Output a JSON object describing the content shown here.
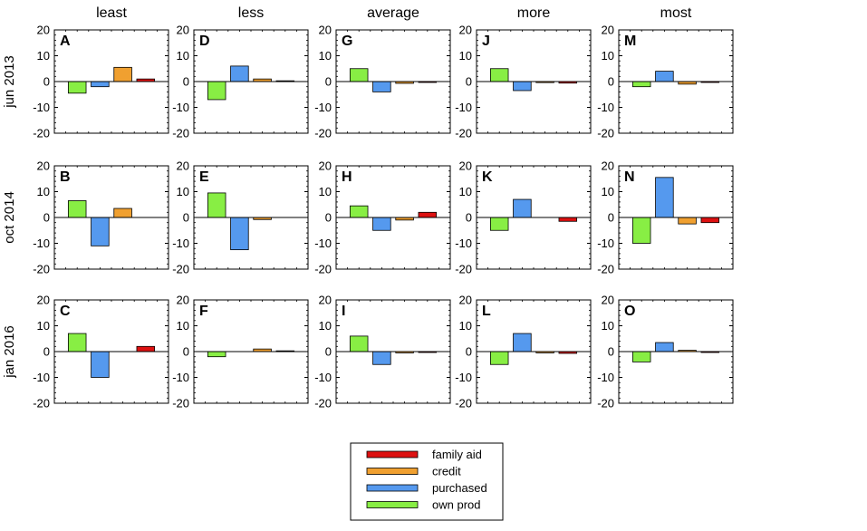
{
  "chart_data": {
    "type": "bar",
    "ylim": [
      -20,
      20
    ],
    "yticks": [
      20,
      10,
      0,
      -10,
      -20
    ],
    "ytick_labels": [
      "20",
      "10",
      "0",
      "-10",
      "-20"
    ],
    "columns": [
      "least",
      "less",
      "average",
      "more",
      "most"
    ],
    "rows": [
      "jun 2013",
      "oct 2014",
      "jan 2016"
    ],
    "series": [
      {
        "name": "own prod",
        "color": "#88ee44"
      },
      {
        "name": "purchased",
        "color": "#5599ee"
      },
      {
        "name": "credit",
        "color": "#f0a030"
      },
      {
        "name": "family aid",
        "color": "#dd1111"
      }
    ],
    "legend_order": [
      "family aid",
      "credit",
      "purchased",
      "own prod"
    ],
    "panels": [
      {
        "letter": "A",
        "row": 0,
        "col": 0,
        "values": [
          -4.5,
          -2,
          5.5,
          1
        ]
      },
      {
        "letter": "D",
        "row": 0,
        "col": 1,
        "values": [
          -7,
          6,
          1,
          0.3
        ]
      },
      {
        "letter": "G",
        "row": 0,
        "col": 2,
        "values": [
          5,
          -4,
          -0.7,
          -0.2
        ]
      },
      {
        "letter": "J",
        "row": 0,
        "col": 3,
        "values": [
          5,
          -3.5,
          -0.4,
          -0.6
        ]
      },
      {
        "letter": "M",
        "row": 0,
        "col": 4,
        "values": [
          -2,
          4,
          -1,
          -0.3
        ]
      },
      {
        "letter": "B",
        "row": 1,
        "col": 0,
        "values": [
          6.5,
          -11,
          3.5,
          0
        ]
      },
      {
        "letter": "E",
        "row": 1,
        "col": 1,
        "values": [
          9.5,
          -12.5,
          -0.8,
          0
        ]
      },
      {
        "letter": "H",
        "row": 1,
        "col": 2,
        "values": [
          4.5,
          -5,
          -1,
          2
        ]
      },
      {
        "letter": "K",
        "row": 1,
        "col": 3,
        "values": [
          -5,
          7,
          0,
          -1.5
        ]
      },
      {
        "letter": "N",
        "row": 1,
        "col": 4,
        "values": [
          -10,
          15.5,
          -2.5,
          -2
        ]
      },
      {
        "letter": "C",
        "row": 2,
        "col": 0,
        "values": [
          7,
          -10,
          0,
          2
        ]
      },
      {
        "letter": "F",
        "row": 2,
        "col": 1,
        "values": [
          -2,
          0,
          1,
          0.3
        ]
      },
      {
        "letter": "I",
        "row": 2,
        "col": 2,
        "values": [
          6,
          -5,
          -0.5,
          -0.2
        ]
      },
      {
        "letter": "L",
        "row": 2,
        "col": 3,
        "values": [
          -5,
          7,
          -0.5,
          -0.7
        ]
      },
      {
        "letter": "O",
        "row": 2,
        "col": 4,
        "values": [
          -4,
          3.5,
          0.5,
          -0.3
        ]
      }
    ]
  }
}
